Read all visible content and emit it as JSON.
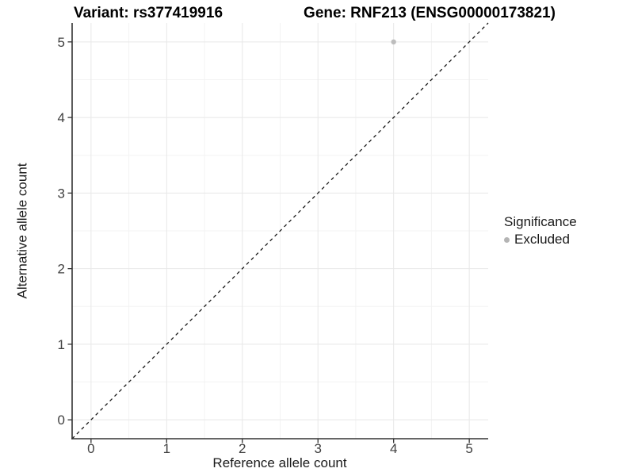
{
  "titles": {
    "left": "Variant: rs377419916",
    "right": "Gene: RNF213 (ENSG00000173821)"
  },
  "chart_data": {
    "type": "scatter",
    "xlabel": "Reference allele count",
    "ylabel": "Alternative allele count",
    "xlim": [
      -0.25,
      5.25
    ],
    "ylim": [
      -0.25,
      5.25
    ],
    "x_ticks": [
      0,
      1,
      2,
      3,
      4,
      5
    ],
    "y_ticks": [
      0,
      1,
      2,
      3,
      4,
      5
    ],
    "x_minor": [
      0.5,
      1.5,
      2.5,
      3.5,
      4.5
    ],
    "y_minor": [
      0.5,
      1.5,
      2.5,
      3.5,
      4.5
    ],
    "grid": true,
    "points": [
      {
        "x": 4,
        "y": 5,
        "series": "Excluded"
      }
    ],
    "reference_line": {
      "kind": "abline",
      "slope": 1,
      "intercept": 0,
      "style": "dashed"
    },
    "legend": {
      "title": "Significance",
      "position": "right",
      "entries": [
        {
          "label": "Excluded",
          "color": "#b4b4b4"
        }
      ]
    },
    "colors": {
      "background": "#ffffff",
      "major_grid": "#e8e8e8",
      "minor_grid": "#f3f3f3",
      "axis_line": "#333333",
      "tick_mark": "#333333",
      "tick_label": "#404040",
      "dashed_line": "#1a1a1a",
      "point": "#bdbdbd"
    }
  }
}
